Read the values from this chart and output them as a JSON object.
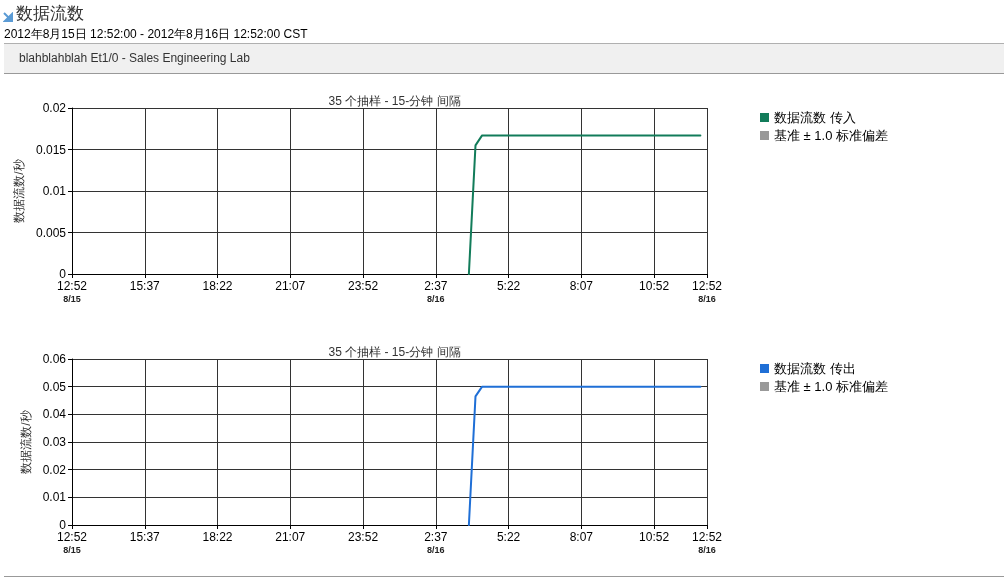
{
  "chart_data": [
    {
      "type": "other",
      "title": "数据流数",
      "subtitle": "2012年8月15日 12:52:00 - 2012年8月16日 12:52:00 CST",
      "annotations": [
        "blahblahblah Et1/0 - Sales Engineering Lab"
      ]
    },
    {
      "type": "line",
      "title": "35 个抽样 - 15-分钟 间隔",
      "ylabel": "数据流数/秒",
      "x": [
        "2012-08-16T03:52",
        "2012-08-16T04:07",
        "2012-08-16T04:22",
        "2012-08-16T12:37"
      ],
      "series": [
        {
          "name": "数据流数 传入",
          "color": "#127c5a",
          "values": [
            0,
            0.0155,
            0.0167,
            0.0167
          ]
        },
        {
          "name": "基准 ± 1.0 标准偏差",
          "color": "#999999",
          "values": [
            null,
            null,
            null,
            null
          ]
        }
      ],
      "xlim": [
        "2012-08-15T12:52",
        "2012-08-16T12:52"
      ],
      "xticks": [
        {
          "value": "2012-08-15T12:52",
          "label": "12:52\n8/15"
        },
        {
          "value": "2012-08-15T15:37",
          "label": "15:37"
        },
        {
          "value": "2012-08-15T18:22",
          "label": "18:22"
        },
        {
          "value": "2012-08-15T21:07",
          "label": "21:07"
        },
        {
          "value": "2012-08-15T23:52",
          "label": "23:52"
        },
        {
          "value": "2012-08-16T02:37",
          "label": "2:37\n8/16"
        },
        {
          "value": "2012-08-16T05:22",
          "label": "5:22"
        },
        {
          "value": "2012-08-16T08:07",
          "label": "8:07"
        },
        {
          "value": "2012-08-16T10:52",
          "label": "10:52"
        },
        {
          "value": "2012-08-16T12:52",
          "label": "12:52\n8/16"
        }
      ],
      "ylim": [
        0,
        0.02
      ],
      "yticks": [
        0,
        0.005,
        0.01,
        0.015,
        0.02
      ],
      "grid": true,
      "legend": "top right",
      "marker": "none",
      "line_style": "solid"
    },
    {
      "type": "line",
      "title": "35 个抽样 - 15-分钟 间隔",
      "ylabel": "数据流数/秒",
      "x": [
        "2012-08-16T03:52",
        "2012-08-16T04:07",
        "2012-08-16T04:22",
        "2012-08-16T12:37"
      ],
      "series": [
        {
          "name": "数据流数 传出",
          "color": "#1f6fd6",
          "values": [
            0,
            0.0465,
            0.05,
            0.05
          ]
        },
        {
          "name": "基准 ± 1.0 标准偏差",
          "color": "#999999",
          "values": [
            null,
            null,
            null,
            null
          ]
        }
      ],
      "xlim": [
        "2012-08-15T12:52",
        "2012-08-16T12:52"
      ],
      "xticks": [
        {
          "value": "2012-08-15T12:52",
          "label": "12:52\n8/15"
        },
        {
          "value": "2012-08-15T15:37",
          "label": "15:37"
        },
        {
          "value": "2012-08-15T18:22",
          "label": "18:22"
        },
        {
          "value": "2012-08-15T21:07",
          "label": "21:07"
        },
        {
          "value": "2012-08-15T23:52",
          "label": "23:52"
        },
        {
          "value": "2012-08-16T02:37",
          "label": "2:37\n8/16"
        },
        {
          "value": "2012-08-16T05:22",
          "label": "5:22"
        },
        {
          "value": "2012-08-16T08:07",
          "label": "8:07"
        },
        {
          "value": "2012-08-16T10:52",
          "label": "10:52"
        },
        {
          "value": "2012-08-16T12:52",
          "label": "12:52\n8/16"
        }
      ],
      "ylim": [
        0,
        0.06
      ],
      "yticks": [
        0,
        0.01,
        0.02,
        0.03,
        0.04,
        0.05,
        0.06
      ],
      "grid": true,
      "legend": "top right",
      "marker": "none",
      "line_style": "solid"
    }
  ]
}
